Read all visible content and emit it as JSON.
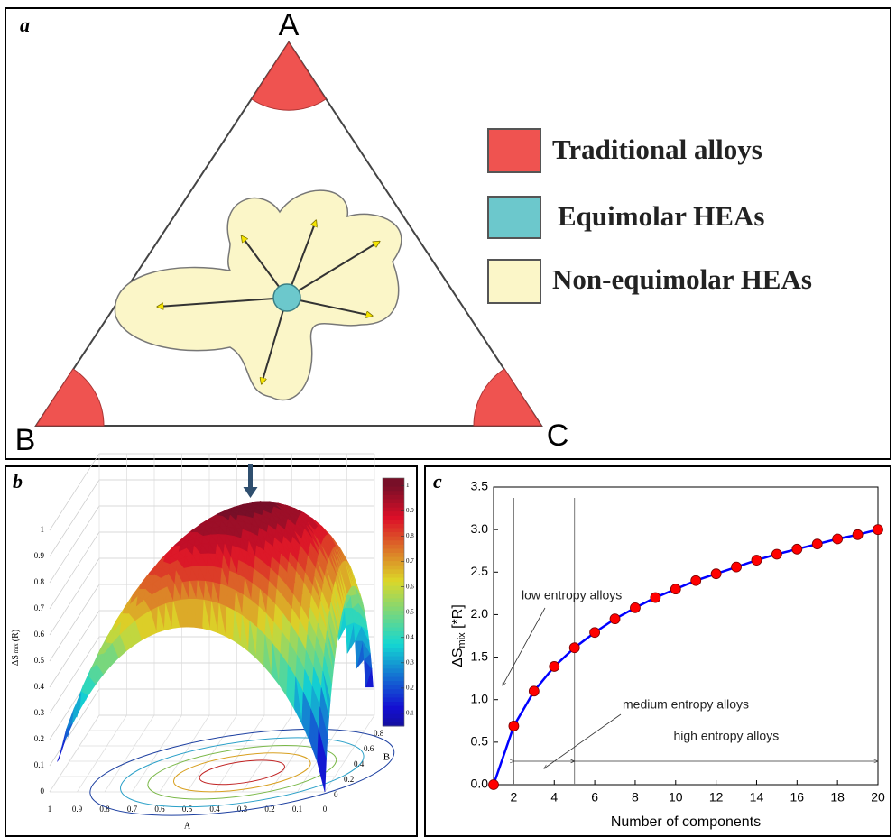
{
  "panel_labels": [
    "a",
    "b",
    "c"
  ],
  "diagram": {
    "vertices": [
      "A",
      "B",
      "C"
    ],
    "legend": [
      "Traditional alloys",
      "Equimolar HEAs",
      "Non-equimolar HEAs"
    ]
  },
  "chart_data": [
    {
      "type": "surface3d",
      "zlabel_parts": [
        "ΔS",
        "mix",
        "(R)"
      ],
      "xlabel": "A",
      "ylabel": "B",
      "xlim": [
        1,
        0
      ],
      "xticks": [
        1,
        0.9,
        0.8,
        0.7,
        0.6,
        0.5,
        0.4,
        0.3,
        0.2,
        0.1,
        0
      ],
      "ylim": [
        0,
        1
      ],
      "yticks": [
        0,
        0.2,
        0.4,
        0.6,
        0.8
      ],
      "zlim": [
        0,
        1
      ],
      "zticks": [
        0,
        0.1,
        0.2,
        0.3,
        0.4,
        0.5,
        0.6,
        0.7,
        0.8,
        0.9,
        1
      ],
      "colorbar_lim": [
        0.05,
        1.03
      ],
      "colorbar_ticks": [
        0.1,
        0.2,
        0.3,
        0.4,
        0.5,
        0.6,
        0.7,
        0.8,
        0.9,
        1
      ],
      "grid": true
    },
    {
      "type": "line",
      "xlabel": "Number of components",
      "ylabel_parts": [
        "ΔS",
        "mix",
        " [*R]"
      ],
      "x": [
        1,
        2,
        3,
        4,
        5,
        6,
        7,
        8,
        9,
        10,
        11,
        12,
        13,
        14,
        15,
        16,
        17,
        18,
        19,
        20
      ],
      "values": [
        0,
        0.69,
        1.1,
        1.39,
        1.61,
        1.79,
        1.95,
        2.08,
        2.2,
        2.3,
        2.4,
        2.48,
        2.56,
        2.64,
        2.71,
        2.77,
        2.83,
        2.89,
        2.94,
        3.0
      ],
      "line_color": "#0000ff",
      "marker_color": "#ff0000",
      "xlim": [
        1,
        20
      ],
      "xticks": [
        2,
        4,
        6,
        8,
        10,
        12,
        14,
        16,
        18,
        20
      ],
      "ylim": [
        0,
        3.5
      ],
      "yticks": [
        {
          "value": 0,
          "label": "0.0"
        },
        {
          "value": 0.5,
          "label": "0.5"
        },
        {
          "value": 1,
          "label": "1.0"
        },
        {
          "value": 1.5,
          "label": "1.5"
        },
        {
          "value": 2,
          "label": "2.0"
        },
        {
          "value": 2.5,
          "label": "2.5"
        },
        {
          "value": 3,
          "label": "3.0"
        },
        {
          "value": 3.5,
          "label": "3.5"
        }
      ],
      "thresholds": [
        2,
        5
      ],
      "low_label": "low entropy alloys",
      "ranges": [
        {
          "label": "medium entropy alloys",
          "from": 2,
          "to": 5
        },
        {
          "label": "high entropy alloys",
          "from": 5,
          "to": 20
        }
      ]
    }
  ]
}
